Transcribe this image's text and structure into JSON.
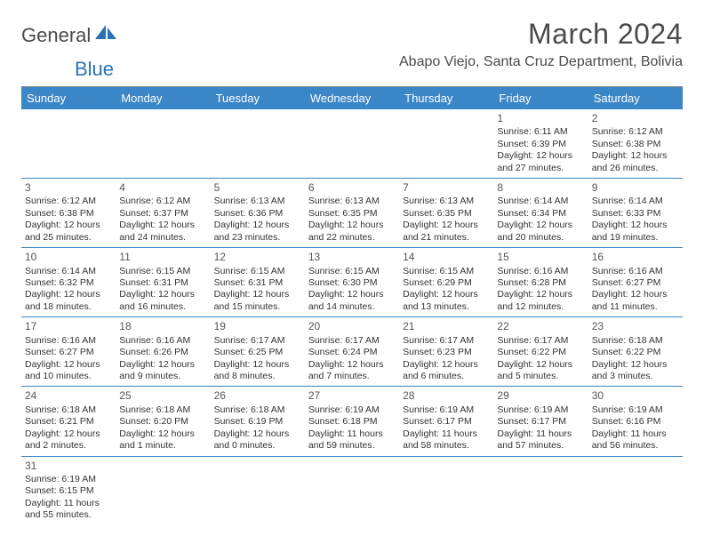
{
  "logo": {
    "general": "General",
    "blue": "Blue"
  },
  "title": "March 2024",
  "location": "Abapo Viejo, Santa Cruz Department, Bolivia",
  "header_bg": "#3b86c6",
  "header_fg": "#ffffff",
  "divider_color": "#3b86c6",
  "day_headers": [
    "Sunday",
    "Monday",
    "Tuesday",
    "Wednesday",
    "Thursday",
    "Friday",
    "Saturday"
  ],
  "weeks": [
    [
      null,
      null,
      null,
      null,
      null,
      {
        "n": "1",
        "sr": "Sunrise: 6:11 AM",
        "ss": "Sunset: 6:39 PM",
        "dl1": "Daylight: 12 hours",
        "dl2": "and 27 minutes."
      },
      {
        "n": "2",
        "sr": "Sunrise: 6:12 AM",
        "ss": "Sunset: 6:38 PM",
        "dl1": "Daylight: 12 hours",
        "dl2": "and 26 minutes."
      }
    ],
    [
      {
        "n": "3",
        "sr": "Sunrise: 6:12 AM",
        "ss": "Sunset: 6:38 PM",
        "dl1": "Daylight: 12 hours",
        "dl2": "and 25 minutes."
      },
      {
        "n": "4",
        "sr": "Sunrise: 6:12 AM",
        "ss": "Sunset: 6:37 PM",
        "dl1": "Daylight: 12 hours",
        "dl2": "and 24 minutes."
      },
      {
        "n": "5",
        "sr": "Sunrise: 6:13 AM",
        "ss": "Sunset: 6:36 PM",
        "dl1": "Daylight: 12 hours",
        "dl2": "and 23 minutes."
      },
      {
        "n": "6",
        "sr": "Sunrise: 6:13 AM",
        "ss": "Sunset: 6:35 PM",
        "dl1": "Daylight: 12 hours",
        "dl2": "and 22 minutes."
      },
      {
        "n": "7",
        "sr": "Sunrise: 6:13 AM",
        "ss": "Sunset: 6:35 PM",
        "dl1": "Daylight: 12 hours",
        "dl2": "and 21 minutes."
      },
      {
        "n": "8",
        "sr": "Sunrise: 6:14 AM",
        "ss": "Sunset: 6:34 PM",
        "dl1": "Daylight: 12 hours",
        "dl2": "and 20 minutes."
      },
      {
        "n": "9",
        "sr": "Sunrise: 6:14 AM",
        "ss": "Sunset: 6:33 PM",
        "dl1": "Daylight: 12 hours",
        "dl2": "and 19 minutes."
      }
    ],
    [
      {
        "n": "10",
        "sr": "Sunrise: 6:14 AM",
        "ss": "Sunset: 6:32 PM",
        "dl1": "Daylight: 12 hours",
        "dl2": "and 18 minutes."
      },
      {
        "n": "11",
        "sr": "Sunrise: 6:15 AM",
        "ss": "Sunset: 6:31 PM",
        "dl1": "Daylight: 12 hours",
        "dl2": "and 16 minutes."
      },
      {
        "n": "12",
        "sr": "Sunrise: 6:15 AM",
        "ss": "Sunset: 6:31 PM",
        "dl1": "Daylight: 12 hours",
        "dl2": "and 15 minutes."
      },
      {
        "n": "13",
        "sr": "Sunrise: 6:15 AM",
        "ss": "Sunset: 6:30 PM",
        "dl1": "Daylight: 12 hours",
        "dl2": "and 14 minutes."
      },
      {
        "n": "14",
        "sr": "Sunrise: 6:15 AM",
        "ss": "Sunset: 6:29 PM",
        "dl1": "Daylight: 12 hours",
        "dl2": "and 13 minutes."
      },
      {
        "n": "15",
        "sr": "Sunrise: 6:16 AM",
        "ss": "Sunset: 6:28 PM",
        "dl1": "Daylight: 12 hours",
        "dl2": "and 12 minutes."
      },
      {
        "n": "16",
        "sr": "Sunrise: 6:16 AM",
        "ss": "Sunset: 6:27 PM",
        "dl1": "Daylight: 12 hours",
        "dl2": "and 11 minutes."
      }
    ],
    [
      {
        "n": "17",
        "sr": "Sunrise: 6:16 AM",
        "ss": "Sunset: 6:27 PM",
        "dl1": "Daylight: 12 hours",
        "dl2": "and 10 minutes."
      },
      {
        "n": "18",
        "sr": "Sunrise: 6:16 AM",
        "ss": "Sunset: 6:26 PM",
        "dl1": "Daylight: 12 hours",
        "dl2": "and 9 minutes."
      },
      {
        "n": "19",
        "sr": "Sunrise: 6:17 AM",
        "ss": "Sunset: 6:25 PM",
        "dl1": "Daylight: 12 hours",
        "dl2": "and 8 minutes."
      },
      {
        "n": "20",
        "sr": "Sunrise: 6:17 AM",
        "ss": "Sunset: 6:24 PM",
        "dl1": "Daylight: 12 hours",
        "dl2": "and 7 minutes."
      },
      {
        "n": "21",
        "sr": "Sunrise: 6:17 AM",
        "ss": "Sunset: 6:23 PM",
        "dl1": "Daylight: 12 hours",
        "dl2": "and 6 minutes."
      },
      {
        "n": "22",
        "sr": "Sunrise: 6:17 AM",
        "ss": "Sunset: 6:22 PM",
        "dl1": "Daylight: 12 hours",
        "dl2": "and 5 minutes."
      },
      {
        "n": "23",
        "sr": "Sunrise: 6:18 AM",
        "ss": "Sunset: 6:22 PM",
        "dl1": "Daylight: 12 hours",
        "dl2": "and 3 minutes."
      }
    ],
    [
      {
        "n": "24",
        "sr": "Sunrise: 6:18 AM",
        "ss": "Sunset: 6:21 PM",
        "dl1": "Daylight: 12 hours",
        "dl2": "and 2 minutes."
      },
      {
        "n": "25",
        "sr": "Sunrise: 6:18 AM",
        "ss": "Sunset: 6:20 PM",
        "dl1": "Daylight: 12 hours",
        "dl2": "and 1 minute."
      },
      {
        "n": "26",
        "sr": "Sunrise: 6:18 AM",
        "ss": "Sunset: 6:19 PM",
        "dl1": "Daylight: 12 hours",
        "dl2": "and 0 minutes."
      },
      {
        "n": "27",
        "sr": "Sunrise: 6:19 AM",
        "ss": "Sunset: 6:18 PM",
        "dl1": "Daylight: 11 hours",
        "dl2": "and 59 minutes."
      },
      {
        "n": "28",
        "sr": "Sunrise: 6:19 AM",
        "ss": "Sunset: 6:17 PM",
        "dl1": "Daylight: 11 hours",
        "dl2": "and 58 minutes."
      },
      {
        "n": "29",
        "sr": "Sunrise: 6:19 AM",
        "ss": "Sunset: 6:17 PM",
        "dl1": "Daylight: 11 hours",
        "dl2": "and 57 minutes."
      },
      {
        "n": "30",
        "sr": "Sunrise: 6:19 AM",
        "ss": "Sunset: 6:16 PM",
        "dl1": "Daylight: 11 hours",
        "dl2": "and 56 minutes."
      }
    ],
    [
      {
        "n": "31",
        "sr": "Sunrise: 6:19 AM",
        "ss": "Sunset: 6:15 PM",
        "dl1": "Daylight: 11 hours",
        "dl2": "and 55 minutes."
      },
      null,
      null,
      null,
      null,
      null,
      null
    ]
  ]
}
